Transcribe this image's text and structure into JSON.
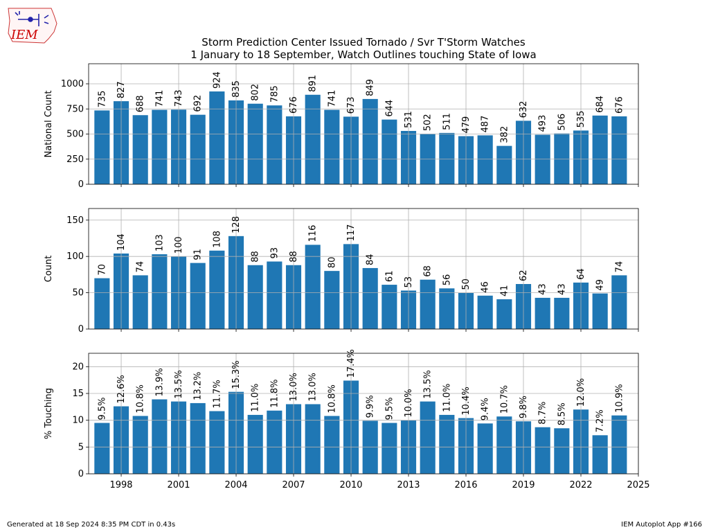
{
  "logo": {
    "text": "IEM",
    "color": "#cc0000"
  },
  "chart_data": {
    "type": "bar",
    "title": "Storm Prediction Center Issued Tornado / Svr T'Storm Watches\n1 January to 18 September, Watch Outlines touching State of Iowa",
    "x": [
      1997,
      1998,
      1999,
      2000,
      2001,
      2002,
      2003,
      2004,
      2005,
      2006,
      2007,
      2008,
      2009,
      2010,
      2011,
      2012,
      2013,
      2014,
      2015,
      2016,
      2017,
      2018,
      2019,
      2020,
      2021,
      2022,
      2023,
      2024
    ],
    "xticks": [
      1998,
      2001,
      2004,
      2007,
      2010,
      2013,
      2016,
      2019,
      2022,
      2025
    ],
    "xlim": [
      1996.3,
      2025
    ],
    "bar_color": "#1f77b4",
    "grid": true,
    "panels": [
      {
        "ylabel": "National Count",
        "ylim": [
          0,
          1200
        ],
        "yticks": [
          0,
          250,
          500,
          750,
          1000
        ],
        "values": [
          735,
          827,
          688,
          741,
          743,
          692,
          924,
          835,
          802,
          785,
          676,
          891,
          741,
          673,
          849,
          644,
          531,
          502,
          511,
          479,
          487,
          382,
          632,
          493,
          506,
          535,
          684,
          676
        ],
        "labels": [
          "735",
          "827",
          "688",
          "741",
          "743",
          "692",
          "924",
          "835",
          "802",
          "785",
          "676",
          "891",
          "741",
          "673",
          "849",
          "644",
          "531",
          "502",
          "511",
          "479",
          "487",
          "382",
          "632",
          "493",
          "506",
          "535",
          "684",
          "676"
        ]
      },
      {
        "ylabel": "Count",
        "ylim": [
          0,
          166
        ],
        "yticks": [
          0,
          50,
          100,
          150
        ],
        "values": [
          70,
          104,
          74,
          103,
          100,
          91,
          108,
          128,
          88,
          93,
          88,
          116,
          80,
          117,
          84,
          61,
          53,
          68,
          56,
          50,
          46,
          41,
          62,
          43,
          43,
          64,
          49,
          74
        ],
        "labels": [
          "70",
          "104",
          "74",
          "103",
          "100",
          "91",
          "108",
          "128",
          "88",
          "93",
          "88",
          "116",
          "80",
          "117",
          "84",
          "61",
          "53",
          "68",
          "56",
          "50",
          "46",
          "41",
          "62",
          "43",
          "43",
          "64",
          "49",
          "74"
        ]
      },
      {
        "ylabel": "% Touching",
        "ylim": [
          0,
          22.5
        ],
        "yticks": [
          0,
          5,
          10,
          15,
          20
        ],
        "values": [
          9.5,
          12.6,
          10.8,
          13.9,
          13.5,
          13.2,
          11.7,
          15.3,
          11.0,
          11.8,
          13.0,
          13.0,
          10.8,
          17.4,
          9.9,
          9.5,
          10.0,
          13.5,
          11.0,
          10.4,
          9.4,
          10.7,
          9.8,
          8.7,
          8.5,
          12.0,
          7.2,
          10.9
        ],
        "labels": [
          "9.5%",
          "12.6%",
          "10.8%",
          "13.9%",
          "13.5%",
          "13.2%",
          "11.7%",
          "15.3%",
          "11.0%",
          "11.8%",
          "13.0%",
          "13.0%",
          "10.8%",
          "17.4%",
          "9.9%",
          "9.5%",
          "10.0%",
          "13.5%",
          "11.0%",
          "10.4%",
          "9.4%",
          "10.7%",
          "9.8%",
          "8.7%",
          "8.5%",
          "12.0%",
          "7.2%",
          "10.9%"
        ]
      }
    ]
  },
  "footer": {
    "left": "Generated at 18 Sep 2024 8:35 PM CDT in 0.43s",
    "right": "IEM Autoplot App #166"
  }
}
